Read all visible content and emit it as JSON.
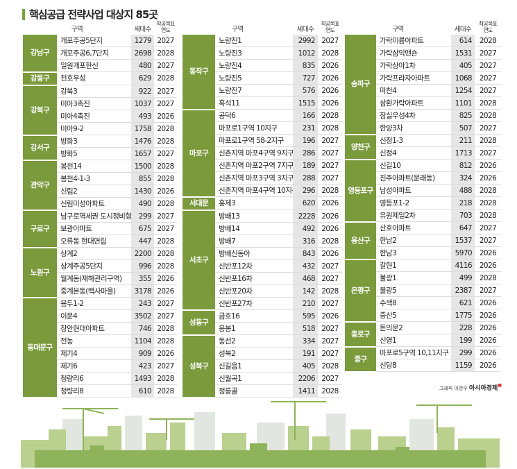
{
  "title": "핵심공급 전략사업 대상지 85곳",
  "headers": {
    "area": "구역",
    "households": "세대수",
    "start_year": "착공목표 연도"
  },
  "colors": {
    "district_bg": "#7a9a3c",
    "count_bg": "#e6e6e6"
  },
  "columns": [
    {
      "groups": [
        {
          "district": "강남구",
          "rows": [
            [
              "개포주공5단지",
              "1279",
              "2027"
            ],
            [
              "개포주공6,7단지",
              "2698",
              "2028"
            ],
            [
              "일원개포한신",
              "480",
              "2027"
            ]
          ]
        },
        {
          "district": "강동구",
          "rows": [
            [
              "천호우성",
              "629",
              "2028"
            ]
          ]
        },
        {
          "district": "강북구",
          "rows": [
            [
              "강북3",
              "922",
              "2027"
            ],
            [
              "미아3촉진",
              "1037",
              "2027"
            ],
            [
              "미아4촉진",
              "493",
              "2026"
            ],
            [
              "미아9-2",
              "1758",
              "2028"
            ]
          ]
        },
        {
          "district": "강서구",
          "rows": [
            [
              "방화3",
              "1476",
              "2028"
            ],
            [
              "방화5",
              "1657",
              "2027"
            ]
          ]
        },
        {
          "district": "관악구",
          "rows": [
            [
              "봉천14",
              "1500",
              "2028"
            ],
            [
              "봉천4-1-3",
              "855",
              "2028"
            ],
            [
              "신림2",
              "1430",
              "2026"
            ],
            [
              "신림미성아파트",
              "490",
              "2028"
            ]
          ]
        },
        {
          "district": "구로구",
          "rows": [
            [
              "남구로역세권 도시정비형 재개발",
              "299",
              "2027"
            ],
            [
              "보광아파트",
              "675",
              "2027"
            ],
            [
              "오류동 현대연립",
              "447",
              "2028"
            ]
          ]
        },
        {
          "district": "노원구",
          "rows": [
            [
              "상계2",
              "2200",
              "2028"
            ],
            [
              "상계주공5단지",
              "996",
              "2028"
            ],
            [
              "월계동(재해관리구역)",
              "355",
              "2026"
            ],
            [
              "중계본동(백사마을)",
              "3178",
              "2026"
            ]
          ]
        },
        {
          "district": "동대문구",
          "rows": [
            [
              "용두1-2",
              "243",
              "2027"
            ],
            [
              "이문4",
              "3502",
              "2027"
            ],
            [
              "장안현대아파트",
              "746",
              "2028"
            ],
            [
              "전농",
              "1104",
              "2028"
            ],
            [
              "제기4",
              "909",
              "2026"
            ],
            [
              "제기6",
              "423",
              "2027"
            ],
            [
              "청량리6",
              "1493",
              "2028"
            ],
            [
              "청량리8",
              "610",
              "2028"
            ]
          ]
        }
      ]
    },
    {
      "groups": [
        {
          "district": "동작구",
          "rows": [
            [
              "노량진1",
              "2992",
              "2027"
            ],
            [
              "노량진3",
              "1012",
              "2028"
            ],
            [
              "노량진4",
              "835",
              "2026"
            ],
            [
              "노량진5",
              "727",
              "2026"
            ],
            [
              "노량진7",
              "576",
              "2026"
            ],
            [
              "흑석11",
              "1515",
              "2026"
            ]
          ]
        },
        {
          "district": "마포구",
          "rows": [
            [
              "공덕6",
              "166",
              "2028"
            ],
            [
              "마포로1구역 10지구",
              "231",
              "2028"
            ],
            [
              "마포로1구역 58-2지구",
              "196",
              "2027"
            ],
            [
              "신촌지역 마포4구역 9지구",
              "286",
              "2027"
            ],
            [
              "신촌지역 마포2구역 7지구",
              "189",
              "2027"
            ],
            [
              "신촌지역 마포3구역 3지구",
              "288",
              "2027"
            ],
            [
              "신촌지역 마포4구역 10지구",
              "296",
              "2028"
            ]
          ]
        },
        {
          "district": "서대문",
          "rows": [
            [
              "홍제3",
              "620",
              "2026"
            ]
          ]
        },
        {
          "district": "서초구",
          "rows": [
            [
              "방배13",
              "2228",
              "2026"
            ],
            [
              "방배14",
              "492",
              "2026"
            ],
            [
              "방배7",
              "316",
              "2028"
            ],
            [
              "방배신동아",
              "843",
              "2026"
            ],
            [
              "신반포12차",
              "432",
              "2027"
            ],
            [
              "신반포16차",
              "468",
              "2027"
            ],
            [
              "신반포20차",
              "142",
              "2028"
            ],
            [
              "신반포27차",
              "210",
              "2027"
            ]
          ]
        },
        {
          "district": "성동구",
          "rows": [
            [
              "금호16",
              "595",
              "2026"
            ],
            [
              "응봉1",
              "518",
              "2027"
            ]
          ]
        },
        {
          "district": "성북구",
          "rows": [
            [
              "동선2",
              "334",
              "2027"
            ],
            [
              "성북2",
              "191",
              "2027"
            ],
            [
              "신길음1",
              "405",
              "2028"
            ],
            [
              "신월곡1",
              "2206",
              "2027"
            ],
            [
              "정릉골",
              "1411",
              "2028"
            ]
          ]
        }
      ]
    },
    {
      "groups": [
        {
          "district": "송파구",
          "rows": [
            [
              "가락미륭아파트",
              "614",
              "2028"
            ],
            [
              "가락삼익맨숀",
              "1531",
              "2027"
            ],
            [
              "가락상아1차",
              "405",
              "2027"
            ],
            [
              "가락프라자아파트",
              "1068",
              "2027"
            ],
            [
              "마천4",
              "1254",
              "2027"
            ],
            [
              "삼환가락아파트",
              "1101",
              "2028"
            ],
            [
              "잠실우성4차",
              "825",
              "2028"
            ],
            [
              "한양3차",
              "507",
              "2027"
            ]
          ]
        },
        {
          "district": "양천구",
          "rows": [
            [
              "신정1-3",
              "211",
              "2028"
            ],
            [
              "신정4",
              "1713",
              "2027"
            ]
          ]
        },
        {
          "district": "영등포구",
          "rows": [
            [
              "신길10",
              "812",
              "2026"
            ],
            [
              "진주아파트(문래동)",
              "324",
              "2026"
            ],
            [
              "남성아파트",
              "488",
              "2028"
            ],
            [
              "영등포1-2",
              "218",
              "2028"
            ],
            [
              "유원제일2차",
              "703",
              "2028"
            ]
          ]
        },
        {
          "district": "용산구",
          "rows": [
            [
              "산호아파트",
              "647",
              "2027"
            ],
            [
              "한남2",
              "1537",
              "2027"
            ],
            [
              "한남3",
              "5970",
              "2026"
            ]
          ]
        },
        {
          "district": "은평구",
          "rows": [
            [
              "갈현1",
              "4116",
              "2026"
            ],
            [
              "불광1",
              "499",
              "2028"
            ],
            [
              "불광5",
              "2387",
              "2027"
            ],
            [
              "수색8",
              "621",
              "2026"
            ],
            [
              "증산5",
              "1775",
              "2026"
            ]
          ]
        },
        {
          "district": "종로구",
          "rows": [
            [
              "돈의문2",
              "228",
              "2026"
            ],
            [
              "신영1",
              "199",
              "2026"
            ]
          ]
        },
        {
          "district": "중구",
          "rows": [
            [
              "마포로5구역 10,11지구",
              "299",
              "2026"
            ],
            [
              "신당8",
              "1159",
              "2026"
            ]
          ]
        }
      ]
    }
  ],
  "credit": {
    "graphic": "그래픽 이영우",
    "publisher": "아시아경제"
  }
}
